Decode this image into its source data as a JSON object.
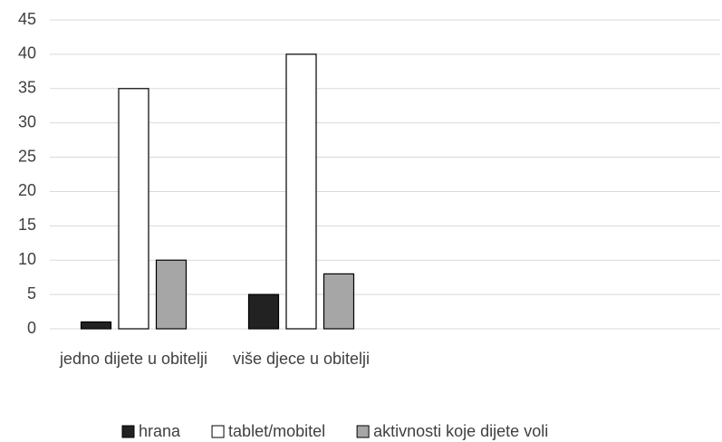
{
  "chart_data": {
    "type": "bar",
    "categories": [
      "jedno dijete u obitelji",
      "više djece u obitelji",
      null,
      null
    ],
    "series": [
      {
        "name": "hrana",
        "color": "#222222",
        "values": [
          1,
          5,
          null,
          null
        ]
      },
      {
        "name": "tablet/mobitel",
        "color": "#ffffff",
        "values": [
          35,
          40,
          null,
          null
        ]
      },
      {
        "name": "aktivnosti koje dijete voli",
        "color": "#a6a6a6",
        "values": [
          10,
          8,
          null,
          null
        ]
      }
    ],
    "ylim": [
      0,
      45
    ],
    "yticks": [
      0,
      5,
      10,
      15,
      20,
      25,
      30,
      35,
      40,
      45
    ],
    "grid": true,
    "legend": "bottom"
  }
}
